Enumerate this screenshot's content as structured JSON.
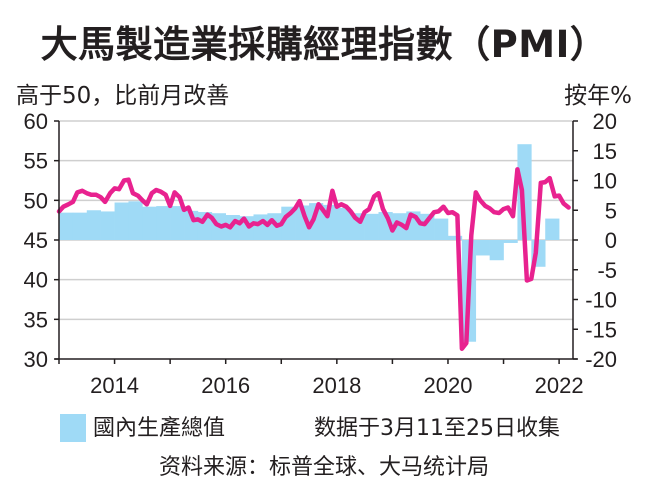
{
  "title": "大馬製造業採購經理指數（PMI）",
  "subtitle": "高于50，比前月改善",
  "right_axis_label": "按年%",
  "legend": {
    "gdp_label": "國內生產總值",
    "note": "数据于3月11至25日收集"
  },
  "source": "资料来源：标普全球、大马统计局",
  "colors": {
    "pmi_line": "#e8228f",
    "gdp_bar": "#9fdaf6",
    "grid": "#cfcfcf",
    "axis": "#231f20"
  },
  "chart_data": {
    "type": "bar+line",
    "title": "大馬製造業採購經理指數（PMI）",
    "left_axis": {
      "label": "高于50，比前月改善",
      "ylim": [
        30,
        60
      ],
      "ticks": [
        30,
        35,
        40,
        45,
        50,
        55,
        60
      ]
    },
    "right_axis": {
      "label": "按年%",
      "ylim": [
        -20,
        20
      ],
      "ticks": [
        -20,
        -15,
        -10,
        -5,
        0,
        5,
        10,
        15,
        20
      ]
    },
    "x_axis": {
      "xlim": [
        2013.0,
        2022.25
      ],
      "tick_labels": [
        "2014",
        "2016",
        "2018",
        "2020",
        "2022"
      ],
      "tick_label_positions": [
        2014,
        2016,
        2018,
        2020,
        2022
      ],
      "ticks": [
        2013,
        2014,
        2015,
        2016,
        2017,
        2018,
        2019,
        2020,
        2021,
        2022
      ]
    },
    "grid": true,
    "legend": "bottom",
    "series": [
      {
        "name": "國內生產總值",
        "type": "bar",
        "axis": "right",
        "x_start": [
          2013.0,
          2013.25,
          2013.5,
          2013.75,
          2014.0,
          2014.25,
          2014.5,
          2014.75,
          2015.0,
          2015.25,
          2015.5,
          2015.75,
          2016.0,
          2016.25,
          2016.5,
          2016.75,
          2017.0,
          2017.25,
          2017.5,
          2017.75,
          2018.0,
          2018.25,
          2018.5,
          2018.75,
          2019.0,
          2019.25,
          2019.5,
          2019.75,
          2020.0,
          2020.25,
          2020.5,
          2020.75,
          2021.0,
          2021.25,
          2021.5,
          2021.75
        ],
        "values": [
          4.6,
          4.6,
          5.0,
          4.8,
          6.3,
          6.5,
          5.6,
          5.7,
          5.7,
          4.9,
          4.7,
          4.5,
          4.2,
          4.0,
          4.3,
          4.5,
          5.6,
          5.8,
          6.2,
          5.9,
          5.4,
          4.5,
          4.4,
          4.7,
          4.5,
          4.8,
          4.4,
          3.6,
          0.7,
          -17.1,
          -2.6,
          -3.4,
          -0.5,
          16.1,
          -4.5,
          3.6
        ]
      },
      {
        "name": "PMI",
        "type": "line",
        "axis": "left",
        "x": [
          2013.0,
          2013.08,
          2013.17,
          2013.25,
          2013.33,
          2013.42,
          2013.5,
          2013.58,
          2013.67,
          2013.75,
          2013.83,
          2013.92,
          2014.0,
          2014.08,
          2014.17,
          2014.25,
          2014.33,
          2014.42,
          2014.5,
          2014.58,
          2014.67,
          2014.75,
          2014.83,
          2014.92,
          2015.0,
          2015.08,
          2015.17,
          2015.25,
          2015.33,
          2015.42,
          2015.5,
          2015.58,
          2015.67,
          2015.75,
          2015.83,
          2015.92,
          2016.0,
          2016.08,
          2016.17,
          2016.25,
          2016.33,
          2016.42,
          2016.5,
          2016.58,
          2016.67,
          2016.75,
          2016.83,
          2016.92,
          2017.0,
          2017.08,
          2017.17,
          2017.25,
          2017.33,
          2017.42,
          2017.5,
          2017.58,
          2017.67,
          2017.75,
          2017.83,
          2017.92,
          2018.0,
          2018.08,
          2018.17,
          2018.25,
          2018.33,
          2018.42,
          2018.5,
          2018.58,
          2018.67,
          2018.75,
          2018.83,
          2018.92,
          2019.0,
          2019.08,
          2019.17,
          2019.25,
          2019.33,
          2019.42,
          2019.5,
          2019.58,
          2019.67,
          2019.75,
          2019.83,
          2019.92,
          2020.0,
          2020.08,
          2020.17,
          2020.25,
          2020.33,
          2020.42,
          2020.5,
          2020.58,
          2020.67,
          2020.75,
          2020.83,
          2020.92,
          2021.0,
          2021.08,
          2021.17,
          2021.25,
          2021.33,
          2021.42,
          2021.5,
          2021.58,
          2021.67,
          2021.75,
          2021.83,
          2021.92,
          2022.0,
          2022.08,
          2022.17
        ],
        "values": [
          48.6,
          49.2,
          49.5,
          49.8,
          51.0,
          51.2,
          50.9,
          50.7,
          50.7,
          50.4,
          49.8,
          50.9,
          51.5,
          51.4,
          52.5,
          52.6,
          50.9,
          50.6,
          50.0,
          49.5,
          50.9,
          51.3,
          51.1,
          50.7,
          49.3,
          51.0,
          50.4,
          48.8,
          49.1,
          47.5,
          47.6,
          47.3,
          48.2,
          47.8,
          47.0,
          46.7,
          46.9,
          46.6,
          47.4,
          47.1,
          47.7,
          46.7,
          47.1,
          47.0,
          47.4,
          46.9,
          47.5,
          46.8,
          47.0,
          47.9,
          48.4,
          49.0,
          49.9,
          48.0,
          46.6,
          47.6,
          49.5,
          48.8,
          48.0,
          51.2,
          49.2,
          49.5,
          49.2,
          48.6,
          47.8,
          47.3,
          48.5,
          48.9,
          50.5,
          50.9,
          48.9,
          47.7,
          46.2,
          47.2,
          46.9,
          46.5,
          48.2,
          47.9,
          47.1,
          47.0,
          47.8,
          48.5,
          48.6,
          49.2,
          48.4,
          48.5,
          48.1,
          31.3,
          32.0,
          45.6,
          51.0,
          50.0,
          49.3,
          49.0,
          48.5,
          48.4,
          48.9,
          49.1,
          48.0,
          53.9,
          51.3,
          39.9,
          40.1,
          43.4,
          52.2,
          52.3,
          52.8,
          50.5,
          50.6,
          49.6,
          49.1
        ]
      }
    ]
  }
}
